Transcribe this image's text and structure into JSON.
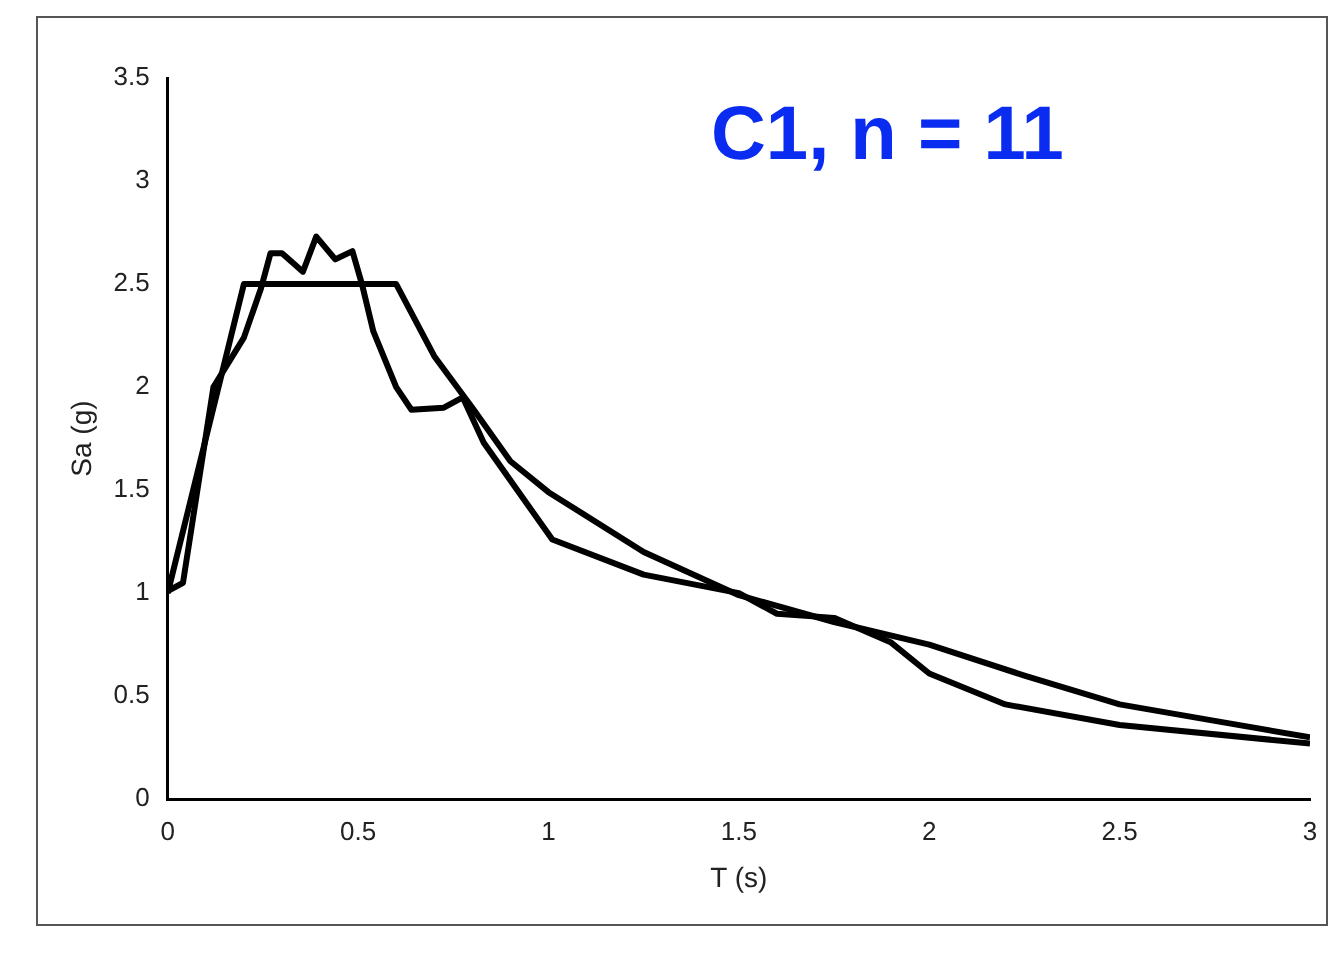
{
  "chart_data": {
    "type": "line",
    "xlabel": "T (s)",
    "ylabel": "Sa (g)",
    "annotations": [
      "C1, n = 11"
    ],
    "xlim": [
      0,
      3
    ],
    "xticks": [
      0,
      0.5,
      1,
      1.5,
      2,
      2.5,
      3
    ],
    "ylim": [
      0,
      3.5
    ],
    "yticks": [
      0,
      0.5,
      1,
      1.5,
      2,
      2.5,
      3,
      3.5
    ],
    "grid": false,
    "legend": false,
    "marker": "none",
    "line_style": "solid",
    "series": [
      {
        "color": "#000000",
        "x": [
          0,
          0.2,
          0.6,
          0.7,
          0.8,
          0.9,
          1.0,
          1.25,
          1.5,
          1.75,
          2.0,
          2.25,
          2.5,
          2.75,
          3.0
        ],
        "values": [
          1.0,
          2.5,
          2.5,
          2.15,
          1.9,
          1.64,
          1.49,
          1.2,
          0.99,
          0.86,
          0.75,
          0.6,
          0.46,
          0.38,
          0.3
        ]
      },
      {
        "color": "#000000",
        "x": [
          0,
          0.04,
          0.12,
          0.2,
          0.245,
          0.27,
          0.3,
          0.355,
          0.39,
          0.44,
          0.485,
          0.51,
          0.54,
          0.6,
          0.64,
          0.725,
          0.775,
          0.83,
          1.01,
          1.25,
          1.5,
          1.6,
          1.75,
          1.9,
          2.0,
          2.2,
          2.5,
          3.0
        ],
        "values": [
          1.01,
          1.05,
          2.0,
          2.24,
          2.48,
          2.65,
          2.65,
          2.56,
          2.73,
          2.62,
          2.66,
          2.5,
          2.27,
          2.0,
          1.89,
          1.9,
          1.95,
          1.73,
          1.26,
          1.09,
          1.0,
          0.9,
          0.88,
          0.76,
          0.61,
          0.46,
          0.36,
          0.27
        ]
      }
    ]
  }
}
